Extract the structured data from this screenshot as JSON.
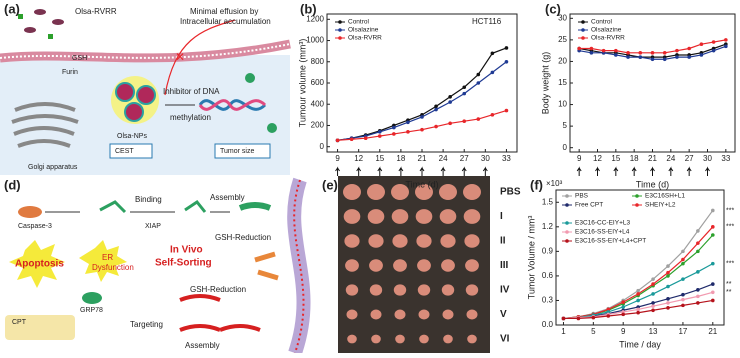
{
  "panels": {
    "a": {
      "label": "(a)",
      "texts": [
        "Olsa-RVRR",
        "Minimal effusion by",
        "Intracellular accumulation",
        "GSH",
        "Furin",
        "Inhibitor of DNA",
        "methylation",
        "Olsa-NPs",
        "CEST",
        "Tumor size",
        "Golgi apparatus"
      ]
    },
    "d": {
      "label": "(d)",
      "texts": [
        "Caspase-3",
        "Binding",
        "XIAP",
        "Assembly",
        "GSH-Reduction",
        "In Vivo",
        "Self-Sorting",
        "Apoptosis",
        "ER",
        "Dysfunction",
        "GRP78",
        "CPT",
        "GSH-Reduction",
        "Targeting",
        "Assembly"
      ]
    },
    "e": {
      "label": "(e)",
      "groups": [
        "PBS",
        "I",
        "II",
        "III",
        "IV",
        "V",
        "VI"
      ]
    }
  },
  "chart_data": [
    {
      "type": "line",
      "title": "(b)",
      "annotation": "HCT116",
      "xlabel": "Time (d)",
      "ylabel": "Tumour volume (mm³)",
      "x": [
        9,
        11,
        13,
        15,
        17,
        19,
        21,
        23,
        25,
        27,
        29,
        31,
        33
      ],
      "xlim": [
        7.5,
        34.5
      ],
      "xticks": [
        9,
        12,
        15,
        18,
        21,
        24,
        27,
        30,
        33
      ],
      "ylim": [
        -50,
        1250
      ],
      "yticks": [
        0,
        200,
        400,
        600,
        800,
        1000,
        1200
      ],
      "legend": "upper left",
      "series": [
        {
          "name": "Control",
          "color": "#111111",
          "values": [
            60,
            80,
            110,
            150,
            200,
            250,
            300,
            380,
            470,
            560,
            680,
            880,
            930
          ]
        },
        {
          "name": "Olsalazine",
          "color": "#1f3a93",
          "values": [
            60,
            80,
            100,
            140,
            180,
            230,
            280,
            350,
            420,
            500,
            600,
            700,
            800
          ]
        },
        {
          "name": "Olsa-RVRR",
          "color": "#e8262a",
          "values": [
            60,
            70,
            80,
            100,
            120,
            140,
            160,
            190,
            220,
            240,
            260,
            300,
            340
          ]
        }
      ]
    },
    {
      "type": "line",
      "title": "(c)",
      "xlabel": "Time (d)",
      "ylabel": "Body weight (g)",
      "x": [
        9,
        11,
        13,
        15,
        17,
        19,
        21,
        23,
        25,
        27,
        29,
        31,
        33
      ],
      "xlim": [
        7.5,
        34.5
      ],
      "xticks": [
        9,
        12,
        15,
        18,
        21,
        24,
        27,
        30,
        33
      ],
      "ylim": [
        -1,
        31
      ],
      "yticks": [
        0,
        5,
        10,
        15,
        20,
        25,
        30
      ],
      "legend": "upper left",
      "series": [
        {
          "name": "Control",
          "color": "#111111",
          "values": [
            23,
            22.5,
            22,
            22,
            21.5,
            21,
            21,
            21,
            21.5,
            21.5,
            22,
            23,
            24
          ]
        },
        {
          "name": "Olsalazine",
          "color": "#1f3a93",
          "values": [
            22.5,
            22,
            22,
            21.5,
            21,
            21,
            20.5,
            20.5,
            21,
            21,
            21.5,
            22.5,
            23.5
          ]
        },
        {
          "name": "Olsa-RVRR",
          "color": "#e8262a",
          "values": [
            23,
            23,
            22.5,
            22.5,
            22,
            22,
            22,
            22,
            22.5,
            23,
            24,
            24.5,
            25
          ]
        }
      ]
    },
    {
      "type": "line",
      "title": "(f)",
      "annotation": "×10³",
      "xlabel": "Time / day",
      "ylabel": "Tumor Volume / mm³",
      "x": [
        1,
        3,
        5,
        7,
        9,
        11,
        13,
        15,
        17,
        19,
        21
      ],
      "xlim": [
        0,
        22.5
      ],
      "xticks": [
        1,
        5,
        9,
        13,
        17,
        21
      ],
      "ylim": [
        0,
        1.65
      ],
      "yticks": [
        {
          "value": 0,
          "label": "0.0"
        },
        0.3,
        0.6,
        0.9,
        1.2,
        1.5
      ],
      "legend": "upper left",
      "significance": [
        "***",
        "***",
        "***",
        "**",
        "**"
      ],
      "series": [
        {
          "name": "PBS",
          "color": "#a0a0a0",
          "values": [
            0.08,
            0.1,
            0.14,
            0.2,
            0.3,
            0.42,
            0.56,
            0.72,
            0.9,
            1.15,
            1.4
          ]
        },
        {
          "name": "E3C16SH+L1",
          "color": "#2ca02c",
          "values": [
            0.08,
            0.1,
            0.13,
            0.18,
            0.26,
            0.36,
            0.48,
            0.6,
            0.75,
            0.9,
            1.1
          ]
        },
        {
          "name": "Free CPT",
          "color": "#1f2a6b",
          "values": [
            0.08,
            0.09,
            0.11,
            0.14,
            0.18,
            0.22,
            0.27,
            0.32,
            0.37,
            0.43,
            0.5
          ]
        },
        {
          "name": "SHEIY+L2",
          "color": "#e8262a",
          "values": [
            0.08,
            0.1,
            0.13,
            0.19,
            0.28,
            0.38,
            0.5,
            0.64,
            0.8,
            1.0,
            1.2
          ]
        },
        {
          "name": "E3C16-CC-EIY+L3",
          "color": "#1a9a9a",
          "values": [
            0.08,
            0.09,
            0.12,
            0.16,
            0.22,
            0.3,
            0.38,
            0.47,
            0.56,
            0.65,
            0.75
          ]
        },
        {
          "name": "E3C16-SS-EIY+L4",
          "color": "#f29ab0",
          "values": [
            0.08,
            0.09,
            0.1,
            0.13,
            0.16,
            0.19,
            0.23,
            0.27,
            0.31,
            0.35,
            0.4
          ]
        },
        {
          "name": "E3C16-SS-EIY+L4+CPT",
          "color": "#b5121b",
          "values": [
            0.08,
            0.08,
            0.09,
            0.11,
            0.13,
            0.15,
            0.18,
            0.21,
            0.24,
            0.27,
            0.3
          ]
        }
      ]
    }
  ]
}
